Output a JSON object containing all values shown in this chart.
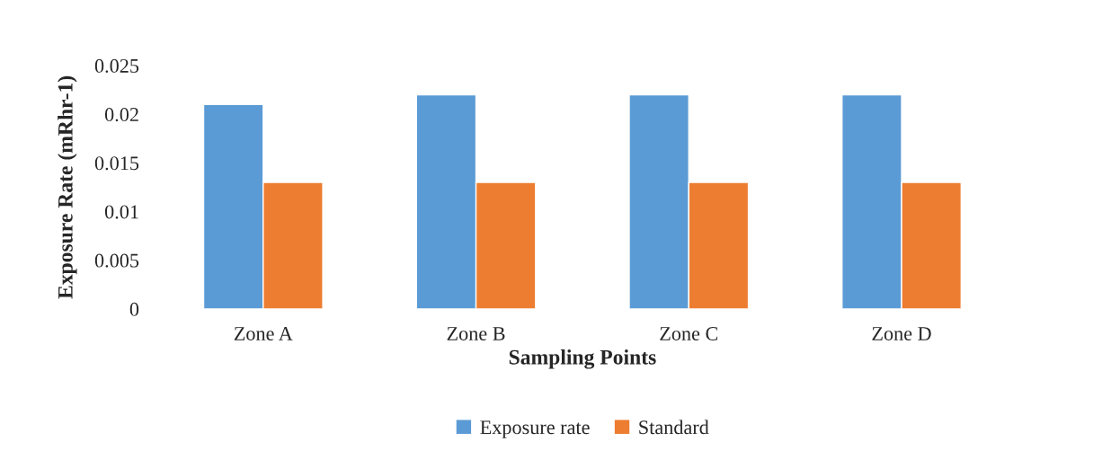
{
  "chart_data": {
    "type": "bar",
    "xlabel": "Sampling Points",
    "ylabel": "Exposure Rate (mRhr-1)",
    "categories": [
      "Zone A",
      "Zone B",
      "Zone C",
      "Zone D"
    ],
    "series": [
      {
        "name": "Exposure rate",
        "color": "#5b9bd5",
        "values": [
          0.021,
          0.022,
          0.022,
          0.022
        ]
      },
      {
        "name": "Standard",
        "color": "#ed7d31",
        "values": [
          0.013,
          0.013,
          0.013,
          0.013
        ]
      }
    ],
    "ylim": [
      0,
      0.025
    ],
    "yticks": [
      0,
      0.005,
      0.01,
      0.015,
      0.02,
      0.025
    ],
    "grid": false,
    "legend": "bottom"
  }
}
